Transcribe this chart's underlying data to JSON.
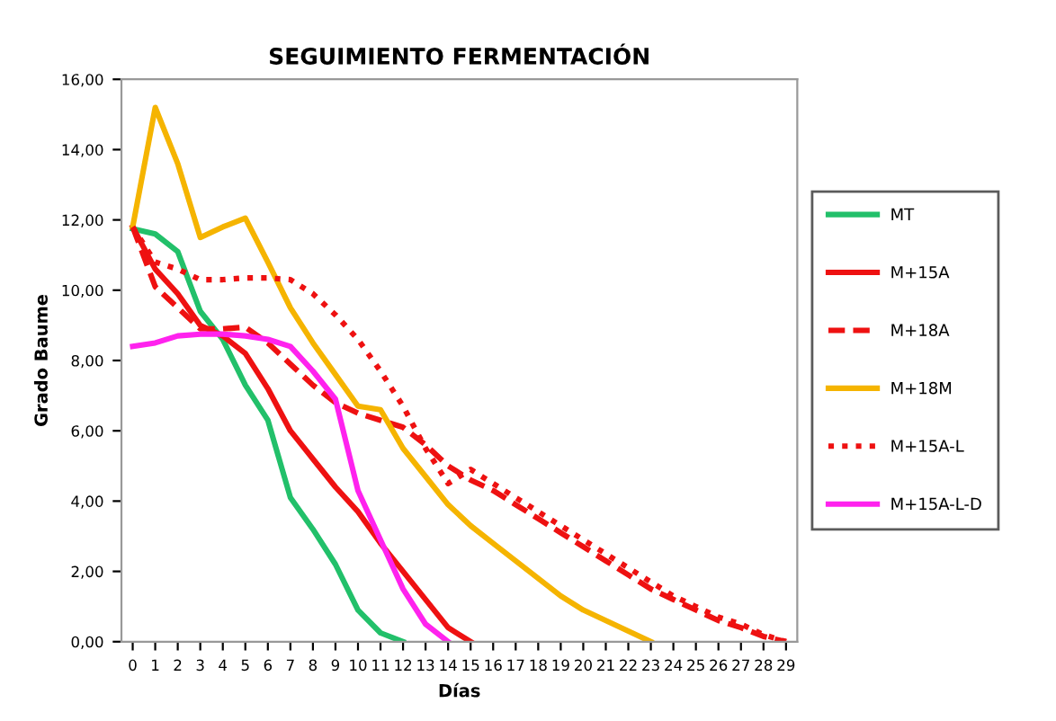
{
  "chart_data": {
    "type": "line",
    "title": "SEGUIMIENTO FERMENTACIÓN",
    "xlabel": "Días",
    "ylabel": "Grado Baume",
    "x": [
      0,
      1,
      2,
      3,
      4,
      5,
      6,
      7,
      8,
      9,
      10,
      11,
      12,
      13,
      14,
      15,
      16,
      17,
      18,
      19,
      20,
      21,
      22,
      23,
      24,
      25,
      26,
      27,
      28,
      29
    ],
    "xlim": [
      -0.5,
      29.5
    ],
    "xticks": [
      0,
      1,
      2,
      3,
      4,
      5,
      6,
      7,
      8,
      9,
      10,
      11,
      12,
      13,
      14,
      15,
      16,
      17,
      18,
      19,
      20,
      21,
      22,
      23,
      24,
      25,
      26,
      27,
      28,
      29
    ],
    "ylim": [
      0,
      16
    ],
    "yticks": [
      {
        "value": 0,
        "label": "0,00"
      },
      {
        "value": 2,
        "label": "2,00"
      },
      {
        "value": 4,
        "label": "4,00"
      },
      {
        "value": 6,
        "label": "6,00"
      },
      {
        "value": 8,
        "label": "8,00"
      },
      {
        "value": 10,
        "label": "10,00"
      },
      {
        "value": 12,
        "label": "12,00"
      },
      {
        "value": 14,
        "label": "14,00"
      },
      {
        "value": 16,
        "label": "16,00"
      }
    ],
    "grid": false,
    "legend": "right",
    "marker": "none",
    "series": [
      {
        "name": "MT",
        "color": "#22c06a",
        "line_style": "solid",
        "values": [
          11.75,
          11.6,
          11.1,
          9.4,
          8.6,
          7.3,
          6.3,
          4.1,
          3.2,
          2.2,
          0.9,
          0.25,
          0,
          null,
          null,
          null,
          null,
          null,
          null,
          null,
          null,
          null,
          null,
          null,
          null,
          null,
          null,
          null,
          null,
          null
        ]
      },
      {
        "name": "M+15A",
        "color": "#ee1111",
        "line_style": "solid",
        "values": [
          11.8,
          10.6,
          9.9,
          9.0,
          8.7,
          8.2,
          7.2,
          6.0,
          5.2,
          4.4,
          3.7,
          2.8,
          2.0,
          1.2,
          0.4,
          0,
          null,
          null,
          null,
          null,
          null,
          null,
          null,
          null,
          null,
          null,
          null,
          null,
          null,
          null
        ]
      },
      {
        "name": "M+18A",
        "color": "#ee1111",
        "line_style": "dashed",
        "values": [
          11.8,
          10.1,
          9.5,
          8.9,
          8.9,
          8.95,
          8.5,
          7.9,
          7.3,
          6.8,
          6.5,
          6.3,
          6.1,
          5.6,
          5.0,
          4.6,
          4.3,
          3.9,
          3.5,
          3.1,
          2.7,
          2.3,
          1.9,
          1.5,
          1.2,
          0.9,
          0.6,
          0.4,
          0.15,
          0
        ]
      },
      {
        "name": "M+18M",
        "color": "#f5b400",
        "line_style": "solid",
        "values": [
          11.8,
          15.2,
          13.6,
          11.5,
          11.8,
          12.05,
          10.8,
          9.5,
          8.5,
          7.6,
          6.7,
          6.6,
          5.5,
          4.7,
          3.9,
          3.3,
          2.8,
          2.3,
          1.8,
          1.3,
          0.9,
          0.6,
          0.3,
          0,
          null,
          null,
          null,
          null,
          null,
          null
        ]
      },
      {
        "name": "M+15A-L",
        "color": "#ee1111",
        "line_style": "dotted",
        "values": [
          11.8,
          10.8,
          10.6,
          10.3,
          10.3,
          10.35,
          10.35,
          10.3,
          9.9,
          9.3,
          8.6,
          7.7,
          6.7,
          5.5,
          4.5,
          4.9,
          4.5,
          4.1,
          3.7,
          3.3,
          2.9,
          2.5,
          2.1,
          1.7,
          1.3,
          1.0,
          0.7,
          0.5,
          0.2,
          0
        ]
      },
      {
        "name": "M+15A-L-D",
        "color": "#ff22ee",
        "line_style": "solid",
        "values": [
          8.4,
          8.5,
          8.7,
          8.75,
          8.75,
          8.7,
          8.6,
          8.4,
          7.7,
          6.9,
          4.3,
          2.9,
          1.5,
          0.5,
          0,
          null,
          null,
          null,
          null,
          null,
          null,
          null,
          null,
          null,
          null,
          null,
          null,
          null,
          null,
          null
        ]
      }
    ]
  }
}
